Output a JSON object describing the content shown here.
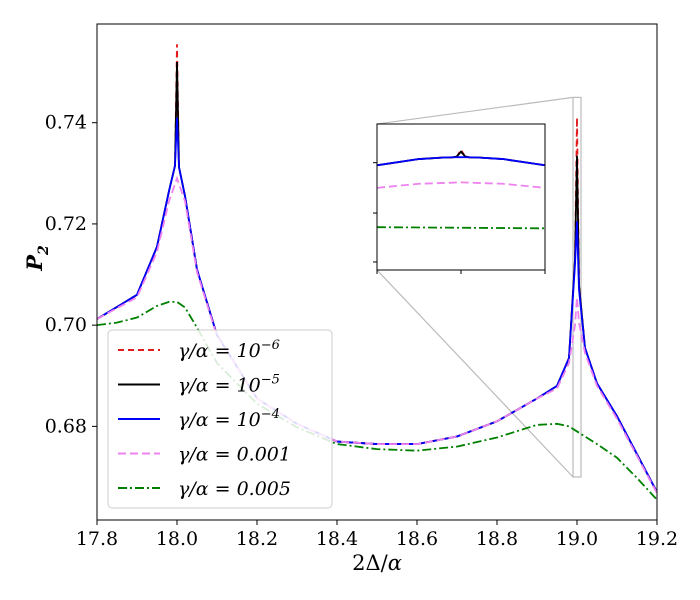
{
  "chart_data": {
    "type": "line",
    "xlabel": "2Δ/α",
    "ylabel": "P₂",
    "xlim": [
      17.8,
      19.2
    ],
    "ylim": [
      0.6615,
      0.7595
    ],
    "x_ticks": [
      17.8,
      18.0,
      18.2,
      18.4,
      18.6,
      18.8,
      19.0,
      19.2
    ],
    "x_tick_labels": [
      "17.8",
      "18.0",
      "18.2",
      "18.4",
      "18.6",
      "18.8",
      "19.0",
      "19.2"
    ],
    "y_ticks": [
      0.68,
      0.7,
      0.72,
      0.74
    ],
    "y_tick_labels": [
      "0.68",
      "0.70",
      "0.72",
      "0.74"
    ],
    "legend_position": "lower-left",
    "series": [
      {
        "name": "γ/α = 10⁻⁶",
        "label_main": "γ/α = 10",
        "label_sup": "−6",
        "color": "#e41a1c",
        "dash": "6,4",
        "x": [
          17.8,
          17.9,
          17.95,
          17.98,
          17.995,
          18.0,
          18.005,
          18.02,
          18.05,
          18.1,
          18.2,
          18.3,
          18.4,
          18.5,
          18.6,
          18.7,
          18.8,
          18.9,
          18.95,
          18.98,
          18.995,
          19.0,
          19.005,
          19.02,
          19.05,
          19.1,
          19.2
        ],
        "y": [
          0.7012,
          0.706,
          0.7155,
          0.7265,
          0.7315,
          0.7555,
          0.7312,
          0.7255,
          0.711,
          0.698,
          0.6855,
          0.6805,
          0.677,
          0.6765,
          0.6765,
          0.678,
          0.681,
          0.6855,
          0.688,
          0.6935,
          0.713,
          0.741,
          0.708,
          0.6955,
          0.6885,
          0.682,
          0.667
        ]
      },
      {
        "name": "γ/α = 10⁻⁵",
        "label_main": "γ/α = 10",
        "label_sup": "−5",
        "color": "#000000",
        "dash": "",
        "x": [
          17.8,
          17.9,
          17.95,
          17.98,
          17.995,
          18.0,
          18.005,
          18.02,
          18.05,
          18.1,
          18.2,
          18.3,
          18.4,
          18.5,
          18.6,
          18.7,
          18.8,
          18.9,
          18.95,
          18.98,
          18.995,
          19.0,
          19.005,
          19.02,
          19.05,
          19.1,
          19.2
        ],
        "y": [
          0.7012,
          0.706,
          0.7155,
          0.7265,
          0.7315,
          0.752,
          0.7312,
          0.7255,
          0.711,
          0.698,
          0.6855,
          0.6805,
          0.677,
          0.6765,
          0.6765,
          0.678,
          0.681,
          0.6855,
          0.688,
          0.6935,
          0.713,
          0.7335,
          0.708,
          0.6955,
          0.6885,
          0.682,
          0.667
        ]
      },
      {
        "name": "γ/α = 10⁻⁴",
        "label_main": "γ/α = 10",
        "label_sup": "−4",
        "color": "#0000ff",
        "dash": "",
        "x": [
          17.8,
          17.9,
          17.95,
          17.98,
          17.995,
          18.0,
          18.005,
          18.02,
          18.05,
          18.1,
          18.2,
          18.3,
          18.4,
          18.5,
          18.6,
          18.7,
          18.8,
          18.9,
          18.95,
          18.98,
          18.995,
          19.0,
          19.005,
          19.02,
          19.05,
          19.1,
          19.2
        ],
        "y": [
          0.7012,
          0.706,
          0.7155,
          0.7265,
          0.7315,
          0.741,
          0.7312,
          0.7255,
          0.711,
          0.698,
          0.6855,
          0.6805,
          0.677,
          0.6765,
          0.6765,
          0.678,
          0.681,
          0.6855,
          0.688,
          0.6935,
          0.712,
          0.7205,
          0.707,
          0.6955,
          0.6885,
          0.682,
          0.667
        ]
      },
      {
        "name": "γ/α = 0.001",
        "label_main": "γ/α = 0.001",
        "label_sup": "",
        "color": "#ee82ee",
        "dash": "8,4",
        "x": [
          17.8,
          17.9,
          17.95,
          17.98,
          18.0,
          18.02,
          18.05,
          18.1,
          18.2,
          18.3,
          18.4,
          18.5,
          18.6,
          18.7,
          18.8,
          18.9,
          18.95,
          18.98,
          18.995,
          19.0,
          19.005,
          19.02,
          19.05,
          19.1,
          19.2
        ],
        "y": [
          0.7012,
          0.7055,
          0.7145,
          0.7245,
          0.729,
          0.7245,
          0.7105,
          0.6978,
          0.6855,
          0.6805,
          0.677,
          0.6765,
          0.6765,
          0.678,
          0.681,
          0.6855,
          0.6875,
          0.6925,
          0.7,
          0.7055,
          0.7005,
          0.6945,
          0.688,
          0.6815,
          0.6668
        ]
      },
      {
        "name": "γ/α = 0.005",
        "label_main": "γ/α = 0.005",
        "label_sup": "",
        "color": "#008000",
        "dash": "9,3,2,3",
        "x": [
          17.8,
          17.85,
          17.9,
          17.95,
          17.98,
          18.0,
          18.02,
          18.05,
          18.1,
          18.2,
          18.3,
          18.4,
          18.5,
          18.6,
          18.7,
          18.8,
          18.9,
          18.95,
          18.98,
          19.0,
          19.05,
          19.1,
          19.15,
          19.2
        ],
        "y": [
          0.7,
          0.7005,
          0.7015,
          0.7038,
          0.7046,
          0.7046,
          0.7035,
          0.6995,
          0.6925,
          0.6845,
          0.6798,
          0.6765,
          0.6755,
          0.6752,
          0.676,
          0.6778,
          0.6803,
          0.6805,
          0.68,
          0.679,
          0.6765,
          0.6738,
          0.6698,
          0.6655
        ]
      }
    ],
    "inset": {
      "xlim": [
        18.99,
        19.01
      ],
      "ylim": [
        0.67,
        0.745
      ],
      "series": [
        {
          "x": [
            18.99,
            18.995,
            18.998,
            18.999,
            18.9995,
            19.0,
            19.0005,
            19.001,
            19.002,
            19.005,
            19.01
          ],
          "y": [
            0.7238,
            0.727,
            0.7278,
            0.7279,
            0.7281,
            0.7318,
            0.7281,
            0.7279,
            0.7278,
            0.727,
            0.7238
          ]
        },
        {
          "x": [
            18.99,
            18.995,
            18.998,
            18.999,
            18.9995,
            19.0,
            19.0005,
            19.001,
            19.002,
            19.005,
            19.01
          ],
          "y": [
            0.7238,
            0.727,
            0.7278,
            0.7279,
            0.7283,
            0.7308,
            0.7283,
            0.7279,
            0.7278,
            0.727,
            0.7238
          ]
        },
        {
          "x": [
            18.99,
            18.995,
            18.998,
            19.0,
            19.002,
            19.005,
            19.01
          ],
          "y": [
            0.7238,
            0.727,
            0.7278,
            0.728,
            0.7278,
            0.727,
            0.7238
          ]
        },
        {
          "x": [
            18.99,
            18.995,
            19.0,
            19.005,
            19.01
          ],
          "y": [
            0.7122,
            0.7143,
            0.715,
            0.7143,
            0.7122
          ]
        },
        {
          "x": [
            18.99,
            19.0,
            19.01
          ],
          "y": [
            0.692,
            0.6917,
            0.6914
          ]
        }
      ]
    }
  }
}
